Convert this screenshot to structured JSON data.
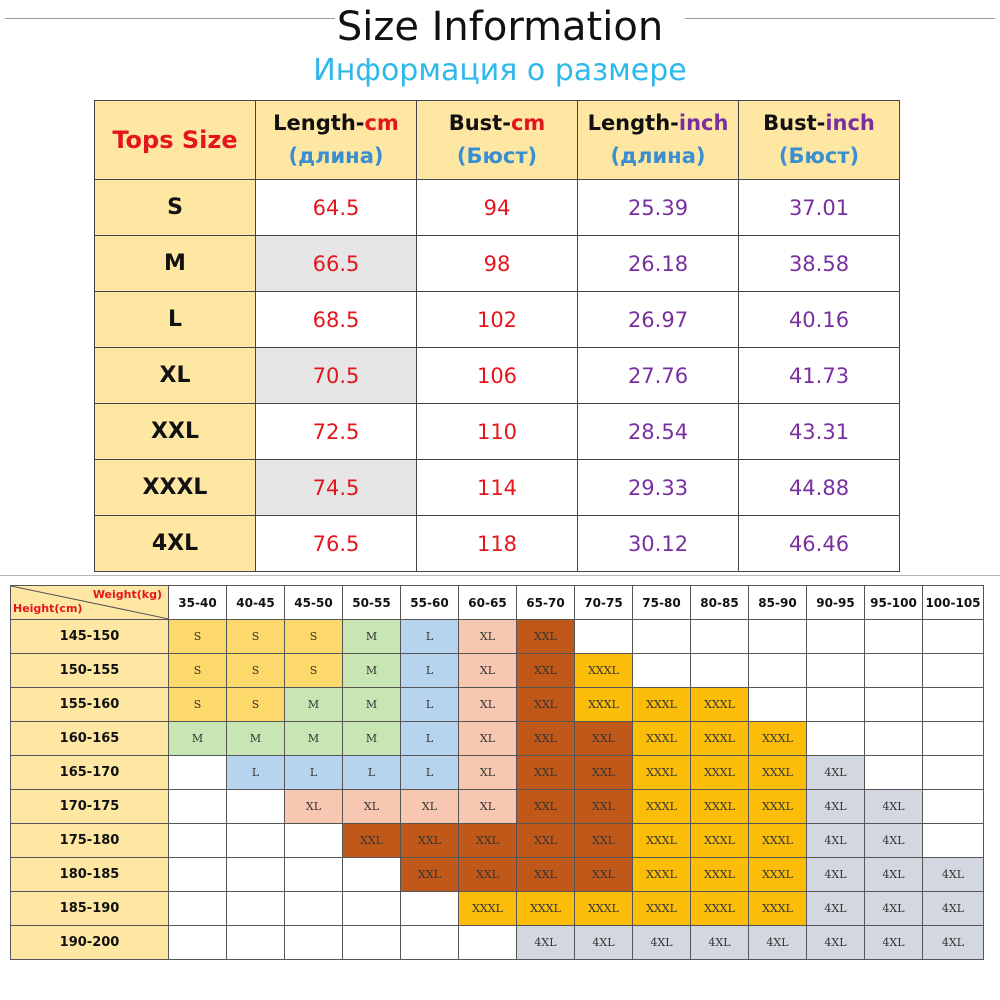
{
  "header": {
    "title": "Size Information",
    "subtitle": "Информация о размере"
  },
  "tops_table": {
    "corner": "Tops Size",
    "columns": [
      {
        "part1": "Length-",
        "unit": "cm",
        "sub": "(длина)",
        "unit_type": "cm"
      },
      {
        "part1": "Bust-",
        "unit": "cm",
        "sub": "(Бюст)",
        "unit_type": "cm"
      },
      {
        "part1": "Length-",
        "unit": "inch",
        "sub": "(длина)",
        "unit_type": "inch"
      },
      {
        "part1": "Bust-",
        "unit": "inch",
        "sub": "(Бюст)",
        "unit_type": "inch"
      }
    ],
    "rows": [
      {
        "size": "S",
        "length_cm": "64.5",
        "bust_cm": "94",
        "length_in": "25.39",
        "bust_in": "37.01"
      },
      {
        "size": "M",
        "length_cm": "66.5",
        "bust_cm": "98",
        "length_in": "26.18",
        "bust_in": "38.58"
      },
      {
        "size": "L",
        "length_cm": "68.5",
        "bust_cm": "102",
        "length_in": "26.97",
        "bust_in": "40.16"
      },
      {
        "size": "XL",
        "length_cm": "70.5",
        "bust_cm": "106",
        "length_in": "27.76",
        "bust_in": "41.73"
      },
      {
        "size": "XXL",
        "length_cm": "72.5",
        "bust_cm": "110",
        "length_in": "28.54",
        "bust_in": "43.31"
      },
      {
        "size": "XXXL",
        "length_cm": "74.5",
        "bust_cm": "114",
        "length_in": "29.33",
        "bust_in": "44.88"
      },
      {
        "size": "4XL",
        "length_cm": "76.5",
        "bust_cm": "118",
        "length_in": "30.12",
        "bust_in": "46.46"
      }
    ]
  },
  "hw_table": {
    "weight_label": "Weight(kg)",
    "height_label": "Height(cm)",
    "weights": [
      "35-40",
      "40-45",
      "45-50",
      "50-55",
      "55-60",
      "60-65",
      "65-70",
      "70-75",
      "75-80",
      "80-85",
      "85-90",
      "90-95",
      "95-100",
      "100-105"
    ],
    "rows": [
      {
        "height": "145-150",
        "cells": [
          "S",
          "S",
          "S",
          "M",
          "L",
          "XL",
          "XXL",
          "",
          "",
          "",
          "",
          "",
          "",
          ""
        ]
      },
      {
        "height": "150-155",
        "cells": [
          "S",
          "S",
          "S",
          "M",
          "L",
          "XL",
          "XXL",
          "XXXL",
          "",
          "",
          "",
          "",
          "",
          ""
        ]
      },
      {
        "height": "155-160",
        "cells": [
          "S",
          "S",
          "M",
          "M",
          "L",
          "XL",
          "XXL",
          "XXXL",
          "XXXL",
          "XXXL",
          "",
          "",
          "",
          ""
        ]
      },
      {
        "height": "160-165",
        "cells": [
          "M",
          "M",
          "M",
          "M",
          "L",
          "XL",
          "XXL",
          "XXL",
          "XXXL",
          "XXXL",
          "XXXL",
          "",
          "",
          ""
        ]
      },
      {
        "height": "165-170",
        "cells": [
          "",
          "L",
          "L",
          "L",
          "L",
          "XL",
          "XXL",
          "XXL",
          "XXXL",
          "XXXL",
          "XXXL",
          "4XL",
          "",
          ""
        ]
      },
      {
        "height": "170-175",
        "cells": [
          "",
          "",
          "XL",
          "XL",
          "XL",
          "XL",
          "XXL",
          "XXL",
          "XXXL",
          "XXXL",
          "XXXL",
          "4XL",
          "4XL",
          ""
        ]
      },
      {
        "height": "175-180",
        "cells": [
          "",
          "",
          "",
          "XXL",
          "XXL",
          "XXL",
          "XXL",
          "XXL",
          "XXXL",
          "XXXL",
          "XXXL",
          "4XL",
          "4XL",
          ""
        ]
      },
      {
        "height": "180-185",
        "cells": [
          "",
          "",
          "",
          "",
          "XXL",
          "XXL",
          "XXL",
          "XXL",
          "XXXL",
          "XXXL",
          "XXXL",
          "4XL",
          "4XL",
          "4XL"
        ]
      },
      {
        "height": "185-190",
        "cells": [
          "",
          "",
          "",
          "",
          "",
          "XXXL",
          "XXXL",
          "XXXL",
          "XXXL",
          "XXXL",
          "XXXL",
          "4XL",
          "4XL",
          "4XL"
        ]
      },
      {
        "height": "190-200",
        "cells": [
          "",
          "",
          "",
          "",
          "",
          "",
          "4XL",
          "4XL",
          "4XL",
          "4XL",
          "4XL",
          "4XL",
          "4XL",
          "4XL"
        ]
      }
    ],
    "size_colors": {
      "S": "#fdd86a",
      "M": "#c8e6b4",
      "L": "#b7d4ee",
      "XL": "#f7c7b1",
      "XXL": "#c0581a",
      "XXXL": "#fbbd07",
      "4XL": "#d3d8e0"
    }
  },
  "colors": {
    "header_bg": "#fde7a3",
    "cm_text": "#e4161d",
    "inch_text": "#7a2fa0",
    "subtitle": "#2fb8ec"
  }
}
